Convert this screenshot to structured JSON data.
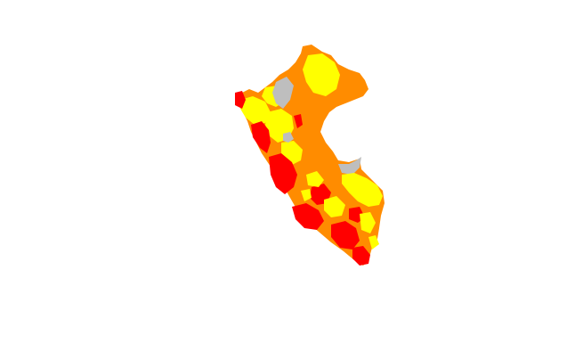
{
  "map": {
    "country": "",
    "legend": [],
    "fill_colors": {
      "no_data": "#BEBEBE",
      "low": "#FFFF00",
      "mid": "#FF8C00",
      "high": "#FF0000"
    },
    "background": "#FFFFFF"
  }
}
